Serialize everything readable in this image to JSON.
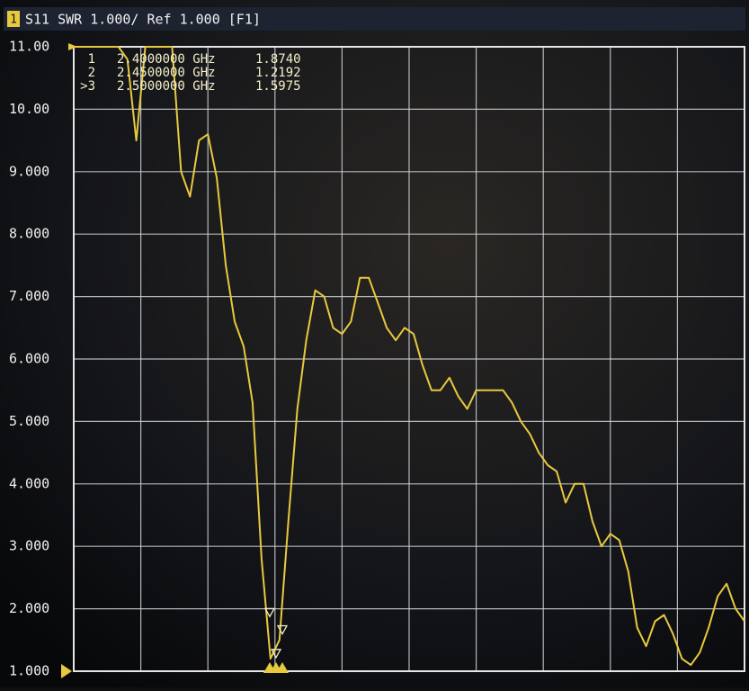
{
  "chart_data": {
    "type": "line",
    "title": "S11 SWR 1.000/ Ref 1.000 [F1]",
    "channel": "1",
    "ylim": [
      1,
      11
    ],
    "yticks": [
      {
        "value": 1,
        "label": "1.000"
      },
      {
        "value": 2,
        "label": "2.000"
      },
      {
        "value": 3,
        "label": "3.000"
      },
      {
        "value": 4,
        "label": "4.000"
      },
      {
        "value": 5,
        "label": "5.000"
      },
      {
        "value": 6,
        "label": "6.000"
      },
      {
        "value": 7,
        "label": "7.000"
      },
      {
        "value": 8,
        "label": "8.000"
      },
      {
        "value": 9,
        "label": "9.000"
      },
      {
        "value": 10,
        "label": "10.00"
      },
      {
        "value": 11,
        "label": "11.00"
      }
    ],
    "grid": true,
    "series": [
      {
        "name": "S11",
        "color": "#e8c93e",
        "values": [
          11,
          11,
          11,
          11,
          11,
          11,
          10.8,
          9.5,
          11,
          11,
          11,
          11,
          9.0,
          8.6,
          9.5,
          9.6,
          8.9,
          7.5,
          6.6,
          6.2,
          5.3,
          2.8,
          1.2,
          1.5,
          3.4,
          5.2,
          6.3,
          7.1,
          7.0,
          6.5,
          6.4,
          6.6,
          7.3,
          7.3,
          6.9,
          6.5,
          6.3,
          6.5,
          6.4,
          5.9,
          5.5,
          5.5,
          5.7,
          5.4,
          5.2,
          5.5,
          5.5,
          5.5,
          5.5,
          5.3,
          5.0,
          4.8,
          4.5,
          4.3,
          4.2,
          3.7,
          4.0,
          4.0,
          3.4,
          3.0,
          3.2,
          3.1,
          2.6,
          1.7,
          1.4,
          1.8,
          1.9,
          1.6,
          1.2,
          1.1,
          1.3,
          1.7,
          2.2,
          2.4,
          2.0,
          1.8
        ]
      }
    ],
    "markers": {
      "names": [
        "1",
        "2",
        ">3"
      ],
      "frequencies": [
        "2.4000000 GHz",
        "2.4500000 GHz",
        "2.5000000 GHz"
      ],
      "values": [
        1.874,
        1.2192,
        1.5975
      ],
      "value_labels": [
        "1.8740",
        "1.2192",
        "1.5975"
      ]
    }
  }
}
